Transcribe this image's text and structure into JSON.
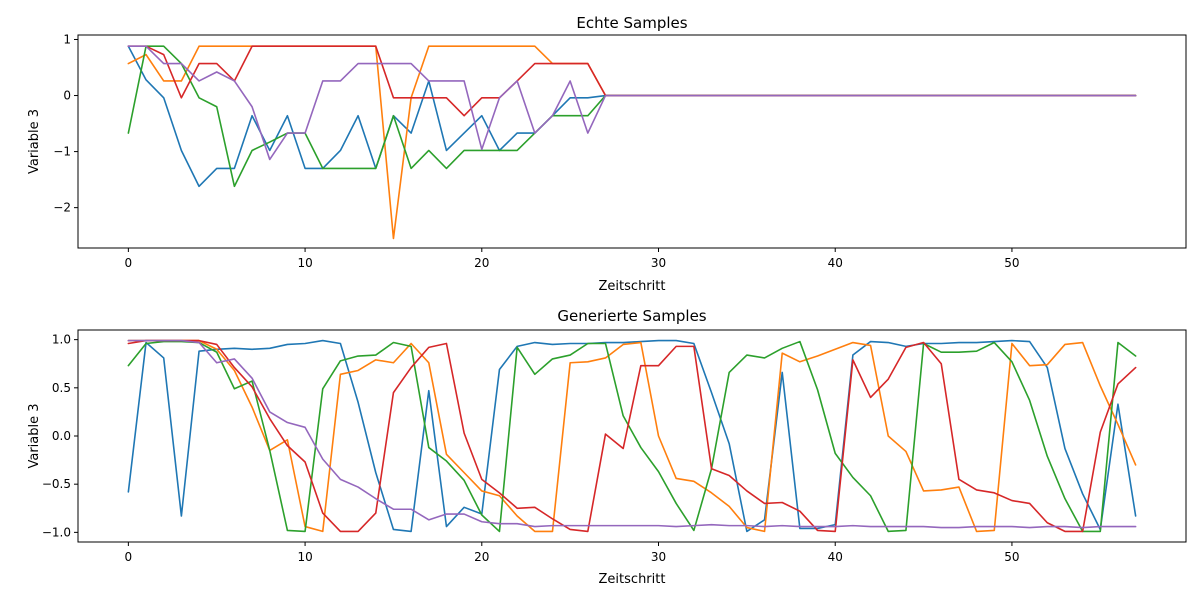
{
  "chart_data": [
    {
      "type": "line",
      "title": "Echte Samples",
      "xlabel": "Zeitschritt",
      "ylabel": "Variable 3",
      "xlim": [
        -2.85,
        59.85
      ],
      "ylim": [
        -2.72,
        1.08
      ],
      "xticks": [
        0,
        10,
        20,
        30,
        40,
        50
      ],
      "yticks": [
        -2,
        -1,
        0,
        1
      ],
      "ytick_labels": [
        "−2",
        "−1",
        "0",
        "1"
      ],
      "xtick_labels": [
        "0",
        "10",
        "20",
        "30",
        "40",
        "50"
      ],
      "grid": false,
      "x_count": 58,
      "series": [
        {
          "color": "#1f77b4",
          "values": [
            0.88,
            0.28,
            -0.04,
            -0.98,
            -1.62,
            -1.3,
            -1.3,
            -0.36,
            -0.98,
            -0.36,
            -1.3,
            -1.3,
            -0.98,
            -0.36,
            -1.3,
            -0.36,
            -0.67,
            0.26,
            -0.98,
            -0.67,
            -0.36,
            -0.98,
            -0.67,
            -0.67,
            -0.36,
            -0.04,
            -0.04,
            0,
            0,
            0,
            0,
            0,
            0,
            0,
            0,
            0,
            0,
            0,
            0,
            0,
            0,
            0,
            0,
            0,
            0,
            0,
            0,
            0,
            0,
            0,
            0,
            0,
            0,
            0,
            0,
            0,
            0,
            0
          ]
        },
        {
          "color": "#ff7f0e",
          "values": [
            0.57,
            0.73,
            0.26,
            0.26,
            0.88,
            0.88,
            0.88,
            0.88,
            0.88,
            0.88,
            0.88,
            0.88,
            0.88,
            0.88,
            0.88,
            -2.55,
            -0.04,
            0.88,
            0.88,
            0.88,
            0.88,
            0.88,
            0.88,
            0.88,
            0.57,
            0.57,
            0.57,
            0,
            0,
            0,
            0,
            0,
            0,
            0,
            0,
            0,
            0,
            0,
            0,
            0,
            0,
            0,
            0,
            0,
            0,
            0,
            0,
            0,
            0,
            0,
            0,
            0,
            0,
            0,
            0,
            0,
            0,
            0
          ]
        },
        {
          "color": "#2ca02c",
          "values": [
            -0.67,
            0.88,
            0.88,
            0.57,
            -0.04,
            -0.2,
            -1.62,
            -0.98,
            -0.83,
            -0.67,
            -0.67,
            -1.3,
            -1.3,
            -1.3,
            -1.3,
            -0.36,
            -1.3,
            -0.98,
            -1.3,
            -0.98,
            -0.98,
            -0.98,
            -0.98,
            -0.67,
            -0.36,
            -0.36,
            -0.36,
            0,
            0,
            0,
            0,
            0,
            0,
            0,
            0,
            0,
            0,
            0,
            0,
            0,
            0,
            0,
            0,
            0,
            0,
            0,
            0,
            0,
            0,
            0,
            0,
            0,
            0,
            0,
            0,
            0,
            0,
            0
          ]
        },
        {
          "color": "#d62728",
          "values": [
            0.88,
            0.88,
            0.73,
            -0.04,
            0.57,
            0.57,
            0.26,
            0.88,
            0.88,
            0.88,
            0.88,
            0.88,
            0.88,
            0.88,
            0.88,
            -0.04,
            -0.04,
            -0.04,
            -0.04,
            -0.36,
            -0.04,
            -0.04,
            0.26,
            0.57,
            0.57,
            0.57,
            0.57,
            0,
            0,
            0,
            0,
            0,
            0,
            0,
            0,
            0,
            0,
            0,
            0,
            0,
            0,
            0,
            0,
            0,
            0,
            0,
            0,
            0,
            0,
            0,
            0,
            0,
            0,
            0,
            0,
            0,
            0,
            0
          ]
        },
        {
          "color": "#9467bd",
          "values": [
            0.88,
            0.88,
            0.57,
            0.57,
            0.26,
            0.42,
            0.26,
            -0.2,
            -1.14,
            -0.67,
            -0.67,
            0.26,
            0.26,
            0.57,
            0.57,
            0.57,
            0.57,
            0.26,
            0.26,
            0.26,
            -0.96,
            -0.04,
            0.26,
            -0.67,
            -0.36,
            0.26,
            -0.67,
            0,
            0,
            0,
            0,
            0,
            0,
            0,
            0,
            0,
            0,
            0,
            0,
            0,
            0,
            0,
            0,
            0,
            0,
            0,
            0,
            0,
            0,
            0,
            0,
            0,
            0,
            0,
            0,
            0,
            0,
            0
          ]
        }
      ]
    },
    {
      "type": "line",
      "title": "Generierte Samples",
      "xlabel": "Zeitschritt",
      "ylabel": "Variable 3",
      "xlim": [
        -2.85,
        59.85
      ],
      "ylim": [
        -1.1,
        1.1
      ],
      "xticks": [
        0,
        10,
        20,
        30,
        40,
        50
      ],
      "yticks": [
        -1.0,
        -0.5,
        0.0,
        0.5,
        1.0
      ],
      "ytick_labels": [
        "−1.0",
        "−0.5",
        "0.0",
        "0.5",
        "1.0"
      ],
      "xtick_labels": [
        "0",
        "10",
        "20",
        "30",
        "40",
        "50"
      ],
      "grid": false,
      "x_count": 58,
      "series": [
        {
          "color": "#1f77b4",
          "values": [
            -0.58,
            0.97,
            0.81,
            -0.83,
            0.88,
            0.9,
            0.91,
            0.9,
            0.91,
            0.95,
            0.96,
            0.99,
            0.96,
            0.35,
            -0.38,
            -0.97,
            -0.99,
            0.47,
            -0.94,
            -0.74,
            -0.81,
            0.69,
            0.93,
            0.97,
            0.95,
            0.96,
            0.96,
            0.97,
            0.97,
            0.98,
            0.99,
            0.99,
            0.96,
            0.45,
            -0.08,
            -0.99,
            -0.87,
            0.66,
            -0.96,
            -0.96,
            -0.92,
            0.84,
            0.98,
            0.97,
            0.93,
            0.96,
            0.96,
            0.97,
            0.97,
            0.98,
            0.99,
            0.98,
            0.71,
            -0.13,
            -0.6,
            -0.97,
            0.33,
            -0.83
          ]
        },
        {
          "color": "#ff7f0e",
          "values": [
            0.99,
            0.99,
            0.99,
            0.99,
            0.99,
            0.9,
            0.68,
            0.3,
            -0.15,
            -0.04,
            -0.94,
            -0.99,
            0.64,
            0.68,
            0.79,
            0.76,
            0.96,
            0.76,
            -0.19,
            -0.38,
            -0.57,
            -0.62,
            -0.83,
            -0.99,
            -0.99,
            0.76,
            0.77,
            0.81,
            0.95,
            0.97,
            0.0,
            -0.44,
            -0.47,
            -0.59,
            -0.73,
            -0.95,
            -0.99,
            0.86,
            0.77,
            0.83,
            0.9,
            0.97,
            0.94,
            0.0,
            -0.16,
            -0.57,
            -0.56,
            -0.53,
            -0.99,
            -0.98,
            0.96,
            0.73,
            0.74,
            0.95,
            0.97,
            0.52,
            0.12,
            -0.3
          ]
        },
        {
          "color": "#2ca02c",
          "values": [
            0.73,
            0.96,
            0.98,
            0.98,
            0.97,
            0.87,
            0.49,
            0.57,
            -0.15,
            -0.98,
            -0.99,
            0.49,
            0.78,
            0.83,
            0.84,
            0.97,
            0.93,
            -0.12,
            -0.26,
            -0.46,
            -0.82,
            -0.99,
            0.92,
            0.64,
            0.8,
            0.84,
            0.96,
            0.96,
            0.21,
            -0.12,
            -0.37,
            -0.7,
            -0.98,
            -0.34,
            0.66,
            0.84,
            0.81,
            0.91,
            0.98,
            0.48,
            -0.18,
            -0.43,
            -0.62,
            -0.99,
            -0.98,
            0.96,
            0.87,
            0.87,
            0.88,
            0.97,
            0.77,
            0.37,
            -0.21,
            -0.65,
            -0.99,
            -0.99,
            0.97,
            0.83
          ]
        },
        {
          "color": "#d62728",
          "values": [
            0.96,
            0.99,
            0.99,
            0.99,
            0.99,
            0.95,
            0.71,
            0.51,
            0.18,
            -0.1,
            -0.27,
            -0.8,
            -0.99,
            -0.99,
            -0.8,
            0.45,
            0.71,
            0.92,
            0.96,
            0.03,
            -0.45,
            -0.59,
            -0.75,
            -0.74,
            -0.86,
            -0.97,
            -0.99,
            0.02,
            -0.13,
            0.73,
            0.73,
            0.93,
            0.93,
            -0.34,
            -0.41,
            -0.57,
            -0.7,
            -0.69,
            -0.78,
            -0.98,
            -0.99,
            0.79,
            0.4,
            0.59,
            0.92,
            0.97,
            0.75,
            -0.45,
            -0.56,
            -0.59,
            -0.67,
            -0.7,
            -0.9,
            -0.99,
            -0.99,
            0.04,
            0.54,
            0.71
          ]
        },
        {
          "color": "#9467bd",
          "values": [
            0.99,
            0.99,
            0.99,
            0.99,
            0.97,
            0.76,
            0.8,
            0.6,
            0.25,
            0.14,
            0.09,
            -0.24,
            -0.45,
            -0.53,
            -0.65,
            -0.76,
            -0.76,
            -0.87,
            -0.81,
            -0.81,
            -0.89,
            -0.91,
            -0.91,
            -0.94,
            -0.93,
            -0.93,
            -0.93,
            -0.93,
            -0.93,
            -0.93,
            -0.93,
            -0.94,
            -0.93,
            -0.92,
            -0.93,
            -0.93,
            -0.94,
            -0.93,
            -0.94,
            -0.94,
            -0.94,
            -0.93,
            -0.94,
            -0.94,
            -0.94,
            -0.94,
            -0.95,
            -0.95,
            -0.94,
            -0.94,
            -0.94,
            -0.95,
            -0.94,
            -0.94,
            -0.95,
            -0.94,
            -0.94,
            -0.94
          ]
        }
      ]
    }
  ]
}
